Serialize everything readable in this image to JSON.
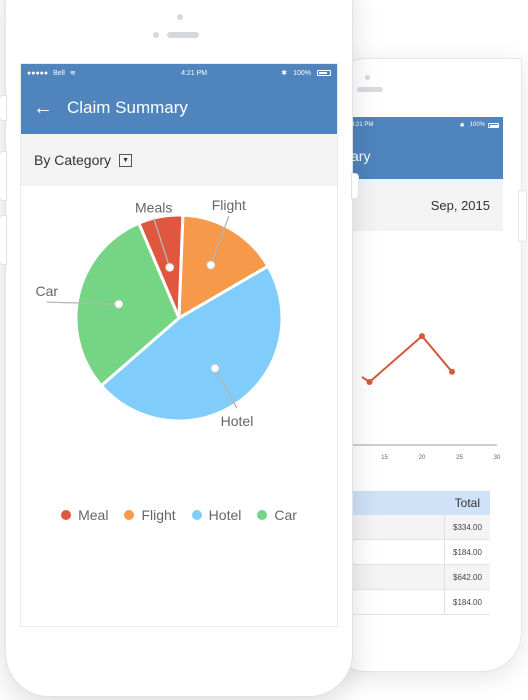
{
  "front_phone": {
    "status": {
      "carrier": "Bell",
      "time": "4:21 PM",
      "battery": "100%"
    },
    "appbar": {
      "back_icon": "arrow-left-icon",
      "title": "Claim Summary"
    },
    "filter": {
      "label": "By Category",
      "dropdown_icon": "caret-down-icon"
    }
  },
  "back_phone": {
    "status": {
      "time": "4:21 PM",
      "battery": "100%"
    },
    "appbar": {
      "title_visible": "ary"
    },
    "date": "Sep, 2015",
    "table": {
      "header": "Total",
      "rows": [
        "$334.00",
        "$184.00",
        "$642.00",
        "$184.00"
      ]
    }
  },
  "chart_data": [
    {
      "type": "pie",
      "slices": [
        {
          "label": "Meals",
          "value": 7,
          "color": "#e0573f"
        },
        {
          "label": "Flight",
          "value": 16,
          "color": "#f7994a"
        },
        {
          "label": "Hotel",
          "value": 47,
          "color": "#80cdfb"
        },
        {
          "label": "Car",
          "value": 30,
          "color": "#76d485"
        }
      ],
      "legend": [
        {
          "label": "Meal",
          "color": "#e0573f"
        },
        {
          "label": "Flight",
          "color": "#f7994a"
        },
        {
          "label": "Hotel",
          "color": "#80cdfb"
        },
        {
          "label": "Car",
          "color": "#76d485"
        }
      ],
      "legend_position": "bottom"
    },
    {
      "type": "line",
      "x_ticks": [
        "15",
        "20",
        "25",
        "30"
      ],
      "series": [
        {
          "x": [
            12,
            13,
            20,
            24
          ],
          "y": [
            0.55,
            0.5,
            0.95,
            0.6
          ],
          "color": "#d45a3b"
        }
      ],
      "xlim": [
        10,
        30
      ],
      "grid": false
    }
  ]
}
